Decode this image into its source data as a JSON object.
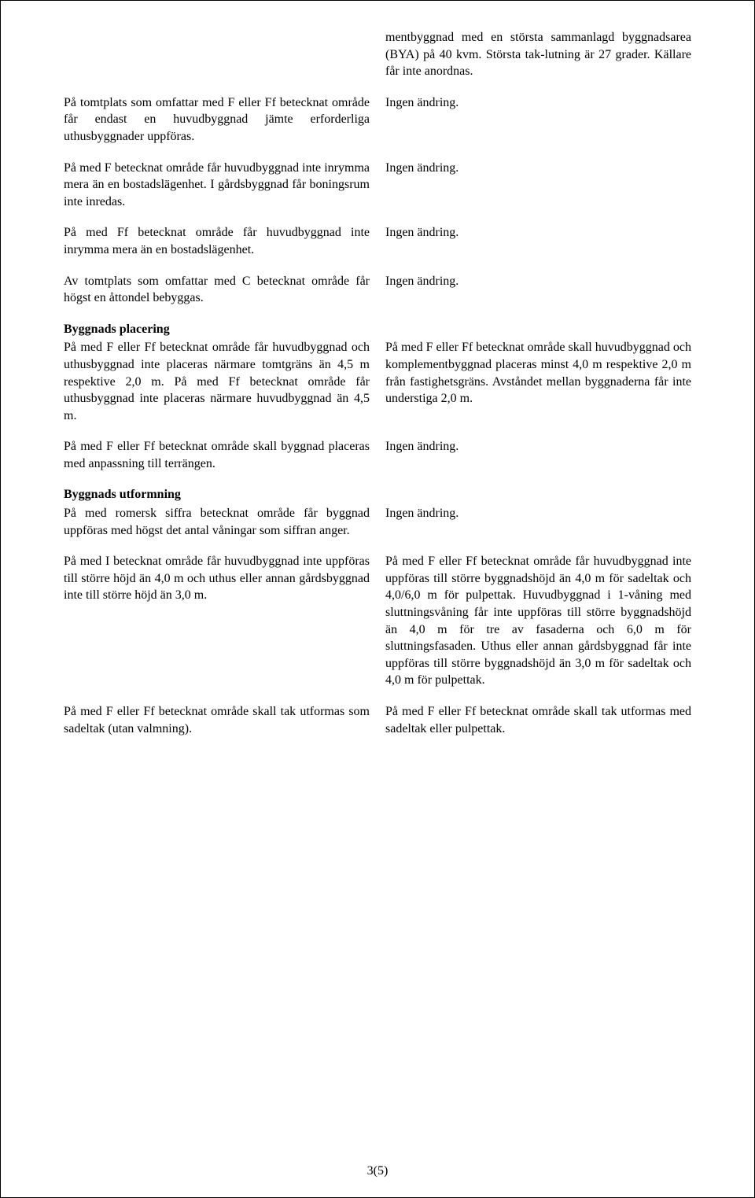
{
  "page_number": "3(5)",
  "no_change": "Ingen ändring.",
  "headings": {
    "placering": "Byggnads placering",
    "utformning": "Byggnads utformning"
  },
  "rows": [
    {
      "left": "",
      "right": "mentbyggnad med en största sammanlagd byggnadsarea (BYA) på 40 kvm. Största tak-lutning är 27 grader. Källare får inte anordnas."
    },
    {
      "left": "På tomtplats som omfattar med F eller Ff betecknat område får endast en huvudbyggnad jämte erforderliga uthusbyggnader uppföras.",
      "right_key": "no_change"
    },
    {
      "left": "På med F betecknat område får huvudbyggnad inte inrymma mera än en bostadslägenhet. I gårdsbyggnad får boningsrum inte inredas.",
      "right_key": "no_change"
    },
    {
      "left": "På med Ff betecknat område får huvudbyggnad inte inrymma mera än en bostadslägenhet.",
      "right_key": "no_change"
    },
    {
      "left": "Av tomtplats som omfattar med C betecknat område får högst en åttondel bebyggas.",
      "right_key": "no_change"
    },
    {
      "left_heading_key": "placering",
      "left": "På med F eller Ff betecknat område får huvudbyggnad och uthusbyggnad inte placeras närmare tomtgräns än 4,5 m respektive 2,0 m. På med Ff betecknat område får uthusbyggnad inte placeras närmare huvudbyggnad än 4,5 m.",
      "right": "På med F eller Ff betecknat område skall huvudbyggnad och komplementbyggnad placeras minst 4,0 m respektive 2,0 m från fastighetsgräns. Avståndet mellan byggnaderna får inte understiga 2,0 m."
    },
    {
      "left": "På med F eller Ff betecknat område skall byggnad placeras med anpassning till terrängen.",
      "right_key": "no_change"
    },
    {
      "left_heading_key": "utformning",
      "left": "På med romersk siffra betecknat område får byggnad uppföras med högst det antal våningar som siffran anger.",
      "right_key": "no_change"
    },
    {
      "left": "På med I betecknat område får huvudbyggnad inte uppföras till större höjd än 4,0 m och uthus eller annan gårdsbyggnad inte till större höjd än 3,0 m.",
      "right": "På med F eller Ff betecknat område får huvudbyggnad inte uppföras till större byggnadshöjd än 4,0 m för sadeltak och 4,0/6,0 m för pulpettak. Huvudbyggnad i 1-våning med sluttningsvåning får inte uppföras till större byggnadshöjd än 4,0 m för tre av fasaderna och 6,0 m för sluttningsfasaden. Uthus eller annan gårdsbyggnad får inte uppföras till större byggnadshöjd än 3,0 m för sadeltak och 4,0 m för pulpettak."
    },
    {
      "left": "På med F eller Ff betecknat område skall tak utformas som sadeltak (utan valmning).",
      "right": "På med F eller Ff betecknat område skall tak utformas med sadeltak eller pulpettak."
    }
  ]
}
